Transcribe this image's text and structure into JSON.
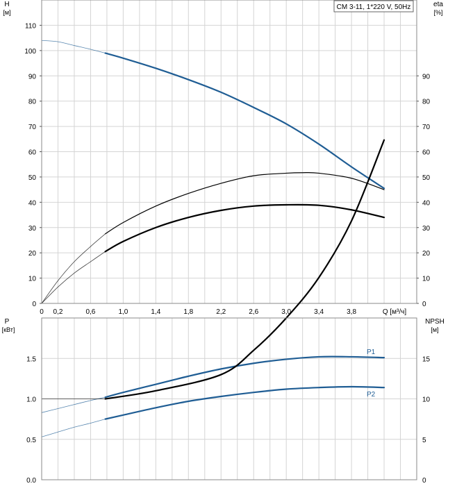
{
  "chart_data": [
    {
      "type": "line",
      "title": "CM 3-11, 1*220 V, 50Hz",
      "left_axis": {
        "label": "H",
        "unit": "[м]",
        "ticks": [
          0,
          10,
          20,
          30,
          40,
          50,
          60,
          70,
          80,
          90,
          100,
          110
        ],
        "ylim": [
          0,
          120
        ]
      },
      "right_axis": {
        "label": "eta",
        "unit": "[%]",
        "ticks": [
          0,
          10,
          20,
          30,
          40,
          50,
          60,
          70,
          80,
          90
        ]
      },
      "x_axis": {
        "label": "Q [м³/ч]",
        "ticks": [
          "0",
          "0,2",
          "0,6",
          "1,0",
          "1,4",
          "1,8",
          "2,2",
          "2,6",
          "3,0",
          "3,4",
          "3,8"
        ],
        "xlim": [
          0,
          4.6
        ]
      },
      "grid": true,
      "series": [
        {
          "role": "head",
          "color": "#1f5d94",
          "dotted_until": 0.78,
          "x": [
            0,
            0.2,
            0.4,
            0.6,
            0.78,
            1.0,
            1.4,
            1.8,
            2.2,
            2.6,
            3.0,
            3.4,
            3.8,
            4.2
          ],
          "y": [
            104,
            103.5,
            102,
            100.5,
            99,
            97,
            93,
            88.5,
            83.5,
            77.5,
            71,
            63,
            54,
            45.5
          ]
        },
        {
          "role": "eta-thin",
          "color": "#000000",
          "dotted_until": 0.78,
          "x": [
            0,
            0.2,
            0.4,
            0.6,
            0.78,
            1.0,
            1.4,
            1.8,
            2.2,
            2.6,
            3.0,
            3.2,
            3.4,
            3.8,
            4.2
          ],
          "y": [
            0,
            9,
            16.5,
            22.5,
            27.5,
            32,
            38.5,
            43.5,
            47.5,
            50.5,
            51.5,
            51.7,
            51.5,
            49.5,
            45
          ]
        },
        {
          "role": "eta-thick",
          "color": "#000000",
          "dotted_until": 0.78,
          "x": [
            0,
            0.2,
            0.4,
            0.6,
            0.78,
            1.0,
            1.4,
            1.8,
            2.2,
            2.6,
            3.0,
            3.4,
            3.8,
            4.2
          ],
          "y": [
            0,
            6.5,
            12,
            16.5,
            20.5,
            24.5,
            30,
            34,
            36.8,
            38.5,
            39,
            38.8,
            37,
            34
          ]
        }
      ]
    },
    {
      "type": "line",
      "left_axis": {
        "label": "P",
        "unit": "[кВт]",
        "ticks": [
          "0.0",
          "0.5",
          "1.0",
          "1.5"
        ],
        "ylim": [
          0,
          2.0
        ]
      },
      "right_axis": {
        "label": "NPSH",
        "unit": "[м]",
        "ticks": [
          "0",
          "5",
          "10",
          "15"
        ]
      },
      "x_axis": {
        "xlim": [
          0,
          4.6
        ]
      },
      "grid": true,
      "series": [
        {
          "name": "P1",
          "color": "#1f5d94",
          "dotted_until": 0.78,
          "x": [
            0,
            0.2,
            0.4,
            0.6,
            0.78,
            1.0,
            1.4,
            1.8,
            2.2,
            2.6,
            3.0,
            3.4,
            3.8,
            4.2
          ],
          "y": [
            0.83,
            0.88,
            0.93,
            0.98,
            1.02,
            1.08,
            1.18,
            1.28,
            1.37,
            1.44,
            1.49,
            1.52,
            1.52,
            1.51
          ]
        },
        {
          "name": "P2",
          "color": "#1f5d94",
          "dotted_until": 0.78,
          "x": [
            0,
            0.2,
            0.4,
            0.6,
            0.78,
            1.0,
            1.4,
            1.8,
            2.2,
            2.6,
            3.0,
            3.4,
            3.8,
            4.2
          ],
          "y": [
            0.53,
            0.59,
            0.65,
            0.7,
            0.75,
            0.8,
            0.89,
            0.97,
            1.03,
            1.08,
            1.12,
            1.14,
            1.15,
            1.14
          ]
        },
        {
          "role": "npsh",
          "color": "#000000",
          "dotted_until": 0.78,
          "x": [
            0,
            0.78,
            1.4,
            2.2,
            2.6,
            3.0,
            3.4,
            3.8,
            4.2
          ],
          "y": [
            1.0,
            1.0,
            1.1,
            1.3,
            1.6,
            2.0,
            2.5,
            3.2,
            4.2
          ]
        }
      ]
    }
  ]
}
